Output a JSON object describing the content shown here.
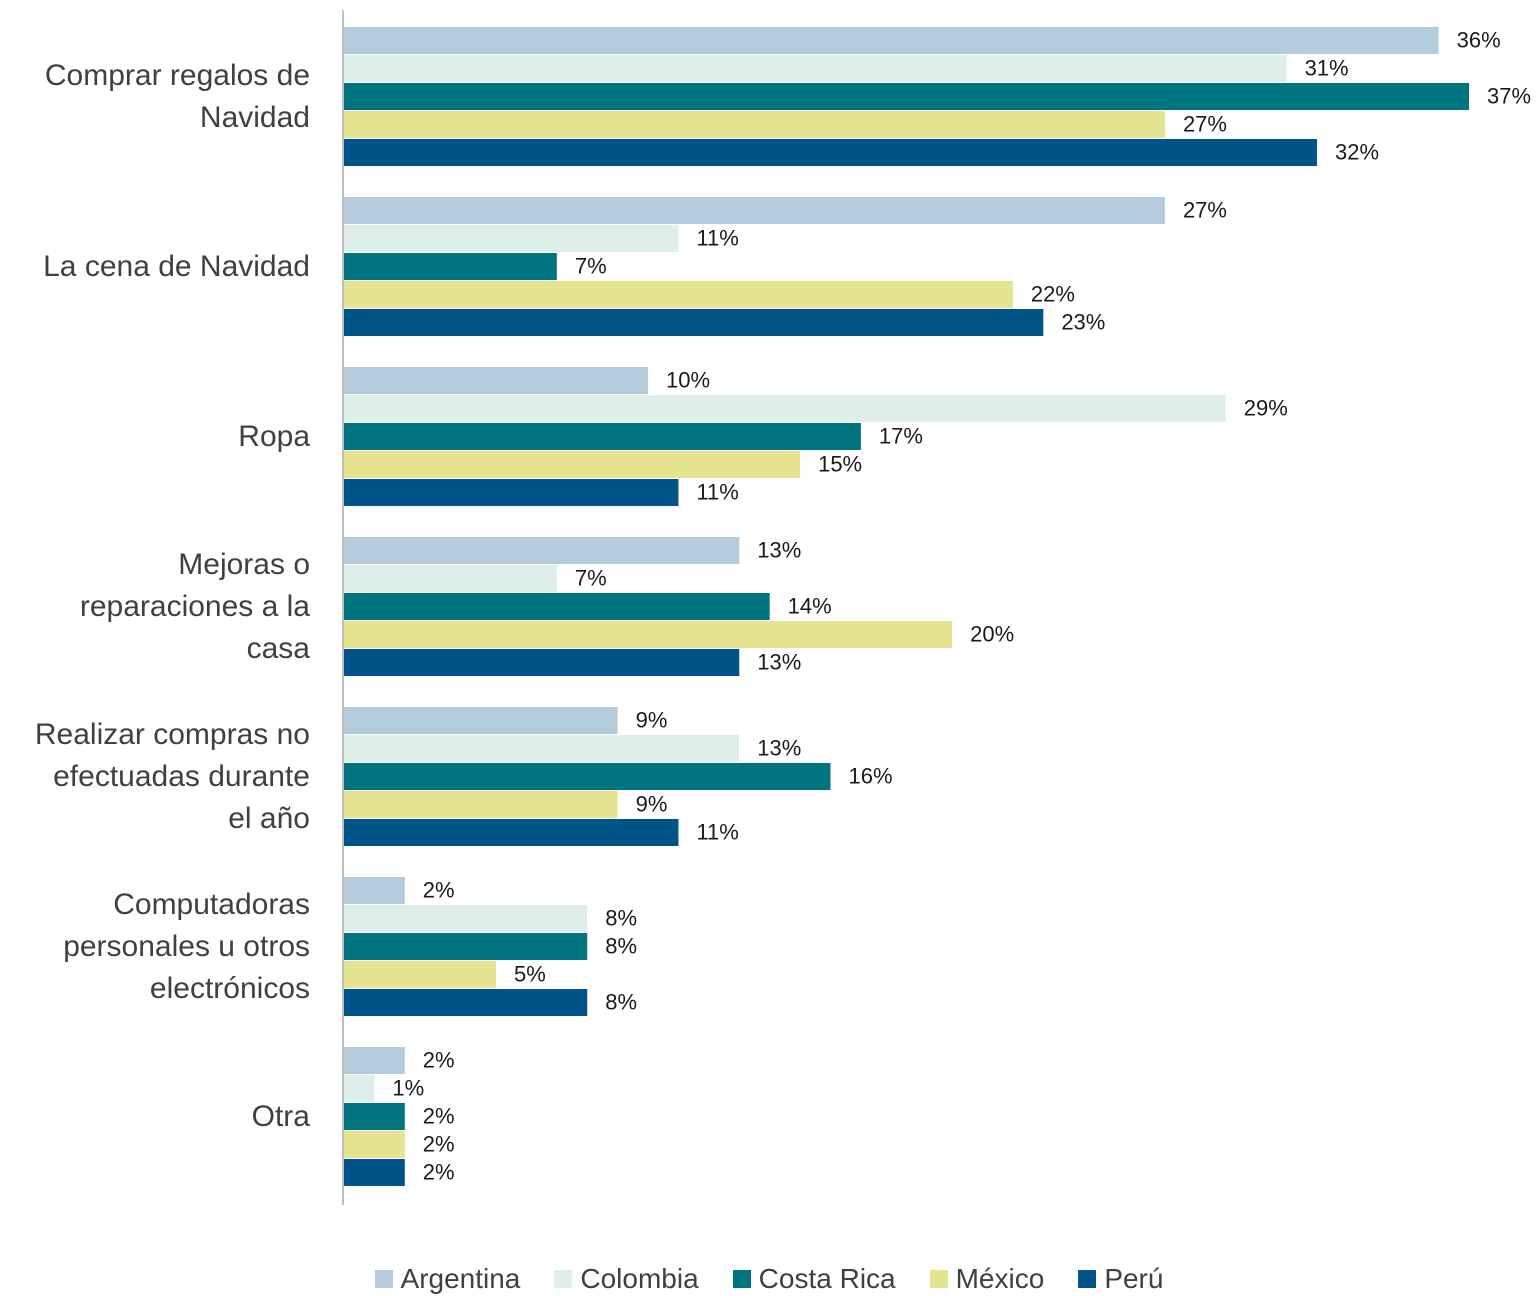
{
  "chart_data": {
    "type": "bar",
    "orientation": "horizontal",
    "categories": [
      "Comprar regalos de\nNavidad",
      "La cena de Navidad",
      "Ropa",
      "Mejoras o\nreparaciones a la\ncasa",
      "Realizar compras no\nefectuadas durante\nel año",
      "Computadoras\npersonales u otros\nelectrónicos",
      "Otra"
    ],
    "series": [
      {
        "name": "Argentina",
        "color": "#b4cbdc",
        "values": [
          36,
          27,
          10,
          13,
          9,
          2,
          2
        ],
        "labels": [
          "36%",
          "27%",
          "10%",
          "13%",
          "9%",
          "2%",
          "2%"
        ]
      },
      {
        "name": "Colombia",
        "color": "#ddefe8",
        "values": [
          31,
          11,
          29,
          7,
          13,
          8,
          1
        ],
        "labels": [
          "31%",
          "11%",
          "29%",
          "7%",
          "13%",
          "8%",
          "1%"
        ]
      },
      {
        "name": "Costa Rica",
        "color": "#007580",
        "values": [
          37,
          7,
          17,
          14,
          16,
          8,
          2
        ],
        "labels": [
          "37%",
          "7%",
          "17%",
          "14%",
          "16%",
          "8%",
          "2%"
        ]
      },
      {
        "name": "México",
        "color": "#e6e391",
        "values": [
          27,
          22,
          15,
          20,
          9,
          5,
          2
        ],
        "labels": [
          "27%",
          "22%",
          "15%",
          "20%",
          "9%",
          "5%",
          "2%"
        ]
      },
      {
        "name": "Perú",
        "color": "#005487",
        "values": [
          32,
          23,
          11,
          13,
          11,
          8,
          2
        ],
        "labels": [
          "32%",
          "23%",
          "11%",
          "13%",
          "11%",
          "8%",
          "2%"
        ]
      }
    ],
    "xlim": [
      0,
      37
    ],
    "grid": false,
    "legend_position": "bottom",
    "axis_color": "#bfbfbf"
  }
}
